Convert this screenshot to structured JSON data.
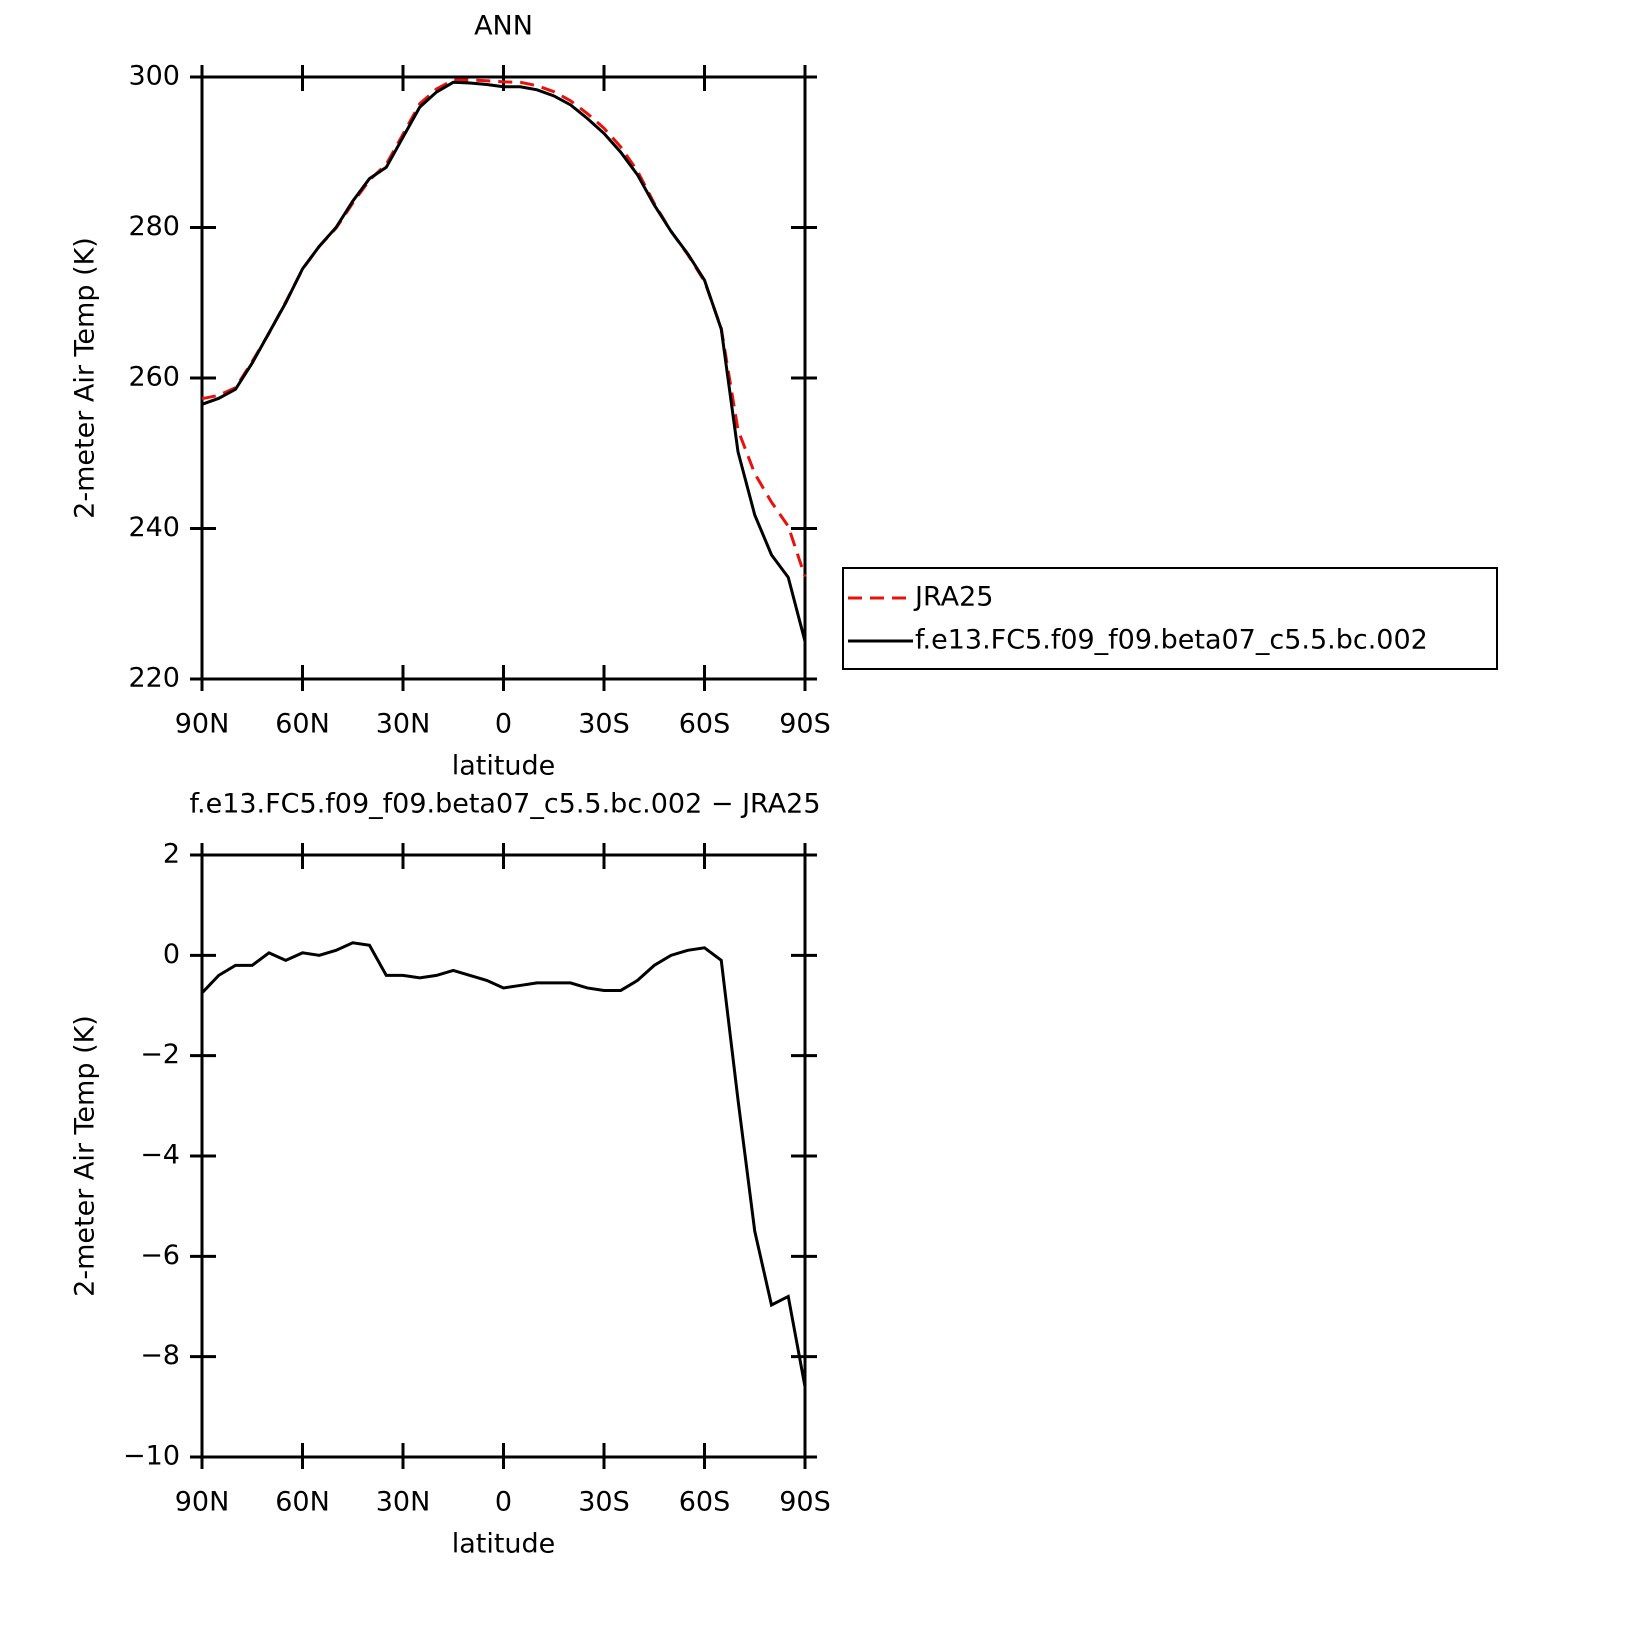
{
  "chart_data": [
    {
      "type": "line",
      "title": "ANN",
      "xlabel": "latitude",
      "ylabel": "2-meter Air Temp (K)",
      "x": [
        90,
        85,
        80,
        75,
        70,
        65,
        60,
        55,
        50,
        45,
        40,
        35,
        30,
        25,
        20,
        15,
        10,
        5,
        0,
        -5,
        -10,
        -15,
        -20,
        -25,
        -30,
        -35,
        -40,
        -45,
        -50,
        -55,
        -60,
        -65,
        -70,
        -75,
        -80,
        -85,
        -90
      ],
      "series": [
        {
          "name": "JRA25",
          "color": "#e8120c",
          "dash": true,
          "values": [
            257.25,
            257.7,
            258.7,
            262.2,
            265.95,
            270.1,
            274.45,
            277.5,
            279.9,
            283.25,
            286.3,
            288.4,
            292.4,
            296.45,
            298.4,
            299.6,
            299.6,
            299.5,
            299.35,
            299.3,
            298.85,
            298.05,
            296.85,
            295.15,
            293.2,
            290.7,
            287.5,
            283.2,
            279.5,
            276.4,
            272.85,
            266.6,
            253.1,
            247.3,
            243.5,
            240.3,
            233.6
          ]
        },
        {
          "name": "f.e13.FC5.f09_f09.beta07_c5.5.bc.002",
          "color": "#000000",
          "dash": false,
          "values": [
            256.5,
            257.3,
            258.5,
            262,
            266,
            270,
            274.5,
            277.5,
            280,
            283.5,
            286.5,
            288,
            292,
            296,
            298,
            299.3,
            299.2,
            299,
            298.7,
            298.7,
            298.3,
            297.5,
            296.3,
            294.5,
            292.5,
            290,
            287,
            283,
            279.5,
            276.5,
            273,
            266.5,
            250.2,
            241.8,
            236.5,
            233.5,
            225
          ]
        }
      ],
      "xlim": [
        90,
        -90
      ],
      "xticks": [
        {
          "value": 90,
          "label": "90N"
        },
        {
          "value": 60,
          "label": "60N"
        },
        {
          "value": 30,
          "label": "30N"
        },
        0,
        {
          "value": -30,
          "label": "30S"
        },
        {
          "value": -60,
          "label": "60S"
        },
        {
          "value": -90,
          "label": "90S"
        }
      ],
      "ylim": [
        220,
        300
      ],
      "yticks": [
        220,
        240,
        260,
        280,
        300
      ],
      "legend": "right"
    },
    {
      "type": "line",
      "title": "f.e13.FC5.f09_f09.beta07_c5.5.bc.002 − JRA25",
      "xlabel": "latitude",
      "ylabel": "2-meter Air Temp (K)",
      "x": [
        90,
        85,
        80,
        75,
        70,
        65,
        60,
        55,
        50,
        45,
        40,
        35,
        30,
        25,
        20,
        15,
        10,
        5,
        0,
        -5,
        -10,
        -15,
        -20,
        -25,
        -30,
        -35,
        -40,
        -45,
        -50,
        -55,
        -60,
        -65,
        -70,
        -75,
        -80,
        -85,
        -90
      ],
      "color": "#000000",
      "values": [
        -0.75,
        -0.4,
        -0.2,
        -0.2,
        0.05,
        -0.1,
        0.05,
        0,
        0.1,
        0.25,
        0.2,
        -0.4,
        -0.4,
        -0.45,
        -0.4,
        -0.3,
        -0.4,
        -0.5,
        -0.65,
        -0.6,
        -0.55,
        -0.55,
        -0.55,
        -0.65,
        -0.7,
        -0.7,
        -0.5,
        -0.2,
        0,
        0.1,
        0.15,
        -0.1,
        -2.88,
        -5.5,
        -6.97,
        -6.8,
        -8.6
      ],
      "xlim": [
        90,
        -90
      ],
      "xticks": [
        {
          "value": 90,
          "label": "90N"
        },
        {
          "value": 60,
          "label": "60N"
        },
        {
          "value": 30,
          "label": "30N"
        },
        0,
        {
          "value": -30,
          "label": "30S"
        },
        {
          "value": -60,
          "label": "60S"
        },
        {
          "value": -90,
          "label": "90S"
        }
      ],
      "ylim": [
        -10,
        2
      ],
      "yticks": [
        {
          "value": -10,
          "label": "−10"
        },
        {
          "value": -8,
          "label": "−8"
        },
        {
          "value": -6,
          "label": "−6"
        },
        {
          "value": -4,
          "label": "−4"
        },
        {
          "value": -2,
          "label": "−2"
        },
        0,
        2
      ]
    }
  ]
}
